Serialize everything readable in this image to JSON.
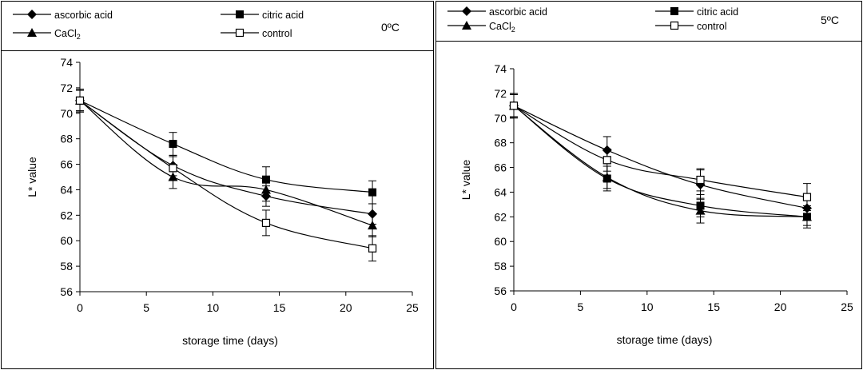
{
  "chart_data": [
    {
      "type": "line",
      "title": "",
      "temperature_label": "0ºC",
      "xlabel": "storage time (days)",
      "ylabel": "L* value",
      "xlim": [
        0,
        25
      ],
      "ylim": [
        56,
        74
      ],
      "xticks": [
        0,
        5,
        10,
        15,
        20,
        25
      ],
      "yticks": [
        56,
        58,
        60,
        62,
        64,
        66,
        68,
        70,
        72,
        74
      ],
      "x": [
        0,
        7,
        14,
        22
      ],
      "legend": "top, boxed, two columns",
      "series": [
        {
          "name": "ascorbic acid",
          "marker": "diamond",
          "values": [
            71.0,
            65.9,
            63.5,
            62.1
          ],
          "err": [
            0.8,
            0.8,
            0.8,
            0.8
          ]
        },
        {
          "name": "citric acid",
          "marker": "square-filled",
          "values": [
            71.0,
            67.6,
            64.8,
            63.8
          ],
          "err": [
            0.9,
            0.9,
            1.0,
            0.9
          ]
        },
        {
          "name": "CaCl2",
          "label_main": "CaCl",
          "label_sub": "2",
          "marker": "triangle",
          "values": [
            71.0,
            65.0,
            64.0,
            61.2
          ],
          "err": [
            0.8,
            0.9,
            0.9,
            0.9
          ]
        },
        {
          "name": "control",
          "marker": "square-open",
          "values": [
            71.0,
            65.7,
            61.4,
            59.4
          ],
          "err": [
            0.9,
            0.9,
            1.0,
            1.0
          ]
        }
      ]
    },
    {
      "type": "line",
      "title": "",
      "temperature_label": "5ºC",
      "xlabel": "storage time (days)",
      "ylabel": "L* value",
      "xlim": [
        0,
        25
      ],
      "ylim": [
        56,
        74
      ],
      "xticks": [
        0,
        5,
        10,
        15,
        20,
        25
      ],
      "yticks": [
        56,
        58,
        60,
        62,
        64,
        66,
        68,
        70,
        72,
        74
      ],
      "x": [
        0,
        7,
        14,
        22
      ],
      "legend": "top, boxed, two columns",
      "series": [
        {
          "name": "ascorbic acid",
          "marker": "diamond",
          "values": [
            71.0,
            67.4,
            64.6,
            62.7
          ],
          "err": [
            0.9,
            1.1,
            1.2,
            0.7
          ]
        },
        {
          "name": "citric acid",
          "marker": "square-filled",
          "values": [
            71.0,
            65.1,
            62.9,
            62.0
          ],
          "err": [
            0.9,
            1.0,
            0.9,
            0.7
          ]
        },
        {
          "name": "CaCl2",
          "label_main": "CaCl",
          "label_sub": "2",
          "marker": "triangle",
          "values": [
            71.0,
            65.2,
            62.5,
            62.0
          ],
          "err": [
            0.9,
            0.9,
            1.0,
            0.9
          ]
        },
        {
          "name": "control",
          "marker": "square-open",
          "values": [
            71.0,
            66.6,
            65.0,
            63.6
          ],
          "err": [
            1.0,
            0.9,
            0.9,
            1.1
          ]
        }
      ]
    }
  ]
}
